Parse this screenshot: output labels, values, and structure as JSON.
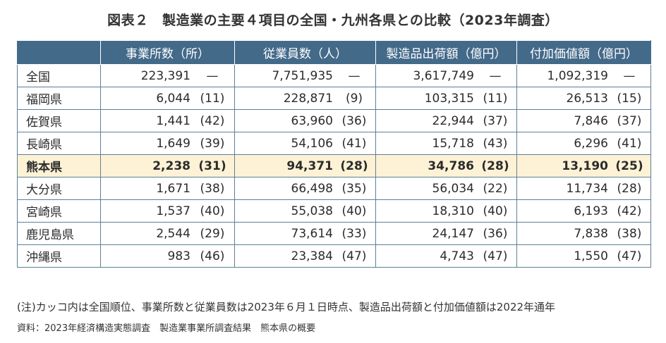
{
  "title": "図表２　製造業の主要４項目の全国・九州各県との比較（2023年調査）",
  "table": {
    "headers": [
      "",
      "事業所数（所）",
      "従業員数（人）",
      "製造品出荷額（億円）",
      "付加価値額（億円）"
    ],
    "rows": [
      {
        "pref": "全国",
        "highlight": false,
        "cells": [
          {
            "v": "223,391",
            "r": "—"
          },
          {
            "v": "7,751,935",
            "r": "—"
          },
          {
            "v": "3,617,749",
            "r": "—"
          },
          {
            "v": "1,092,319",
            "r": "—"
          }
        ]
      },
      {
        "pref": "福岡県",
        "highlight": false,
        "cells": [
          {
            "v": "6,044",
            "r": "(11)"
          },
          {
            "v": "228,871",
            "r": "(9)"
          },
          {
            "v": "103,315",
            "r": "(11)"
          },
          {
            "v": "26,513",
            "r": "(15)"
          }
        ]
      },
      {
        "pref": "佐賀県",
        "highlight": false,
        "cells": [
          {
            "v": "1,441",
            "r": "(42)"
          },
          {
            "v": "63,960",
            "r": "(36)"
          },
          {
            "v": "22,944",
            "r": "(37)"
          },
          {
            "v": "7,846",
            "r": "(37)"
          }
        ]
      },
      {
        "pref": "長崎県",
        "highlight": false,
        "cells": [
          {
            "v": "1,649",
            "r": "(39)"
          },
          {
            "v": "54,106",
            "r": "(41)"
          },
          {
            "v": "15,718",
            "r": "(43)"
          },
          {
            "v": "6,296",
            "r": "(41)"
          }
        ]
      },
      {
        "pref": "熊本県",
        "highlight": true,
        "cells": [
          {
            "v": "2,238",
            "r": "(31)"
          },
          {
            "v": "94,371",
            "r": "(28)"
          },
          {
            "v": "34,786",
            "r": "(28)"
          },
          {
            "v": "13,190",
            "r": "(25)"
          }
        ]
      },
      {
        "pref": "大分県",
        "highlight": false,
        "cells": [
          {
            "v": "1,671",
            "r": "(38)"
          },
          {
            "v": "66,498",
            "r": "(35)"
          },
          {
            "v": "56,034",
            "r": "(22)"
          },
          {
            "v": "11,734",
            "r": "(28)"
          }
        ]
      },
      {
        "pref": "宮崎県",
        "highlight": false,
        "cells": [
          {
            "v": "1,537",
            "r": "(40)"
          },
          {
            "v": "55,038",
            "r": "(40)"
          },
          {
            "v": "18,310",
            "r": "(40)"
          },
          {
            "v": "6,193",
            "r": "(42)"
          }
        ]
      },
      {
        "pref": "鹿児島県",
        "highlight": false,
        "cells": [
          {
            "v": "2,544",
            "r": "(29)"
          },
          {
            "v": "73,614",
            "r": "(33)"
          },
          {
            "v": "24,147",
            "r": "(36)"
          },
          {
            "v": "7,838",
            "r": "(38)"
          }
        ]
      },
      {
        "pref": "沖縄県",
        "highlight": false,
        "cells": [
          {
            "v": "983",
            "r": "(46)"
          },
          {
            "v": "23,384",
            "r": "(47)"
          },
          {
            "v": "4,743",
            "r": "(47)"
          },
          {
            "v": "1,550",
            "r": "(47)"
          }
        ]
      }
    ]
  },
  "note": "(注)カッコ内は全国順位、事業所数と従業員数は2023年６月１日時点、製造品出荷額と付加価値額は2022年通年",
  "source": "資料：2023年経済構造実態調査　製造業事業所調査結果　熊本県の概要",
  "colors": {
    "header_bg": "#446a8a",
    "highlight_bg": "#fdf2d6",
    "border": "#5f7f94"
  }
}
